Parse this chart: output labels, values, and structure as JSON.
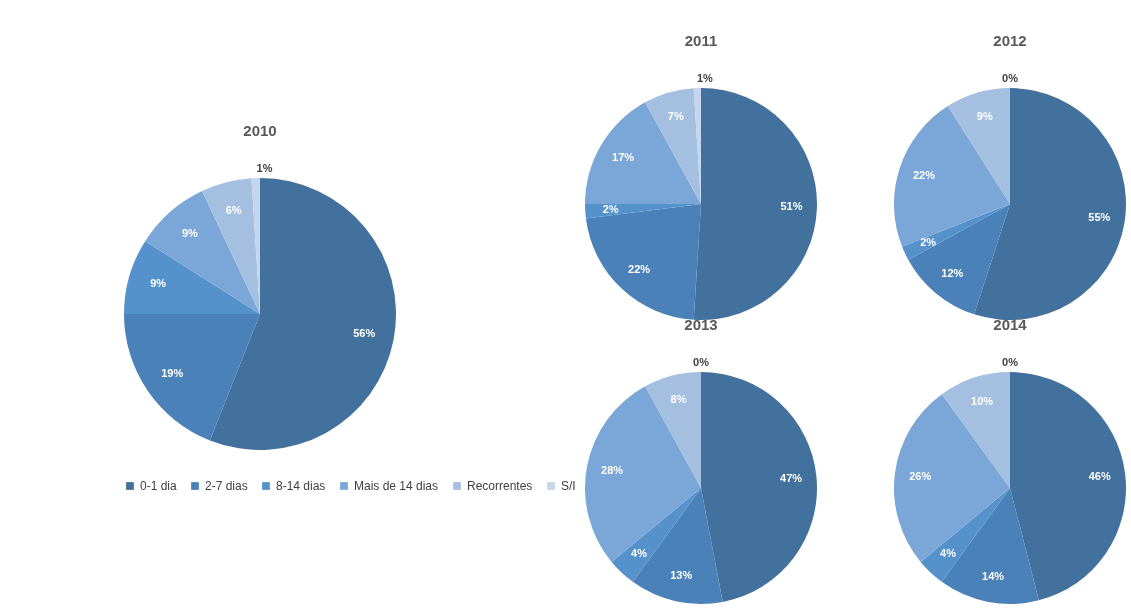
{
  "chart_data": [
    {
      "type": "pie",
      "title": "2010",
      "categories": [
        "0-1 dia",
        "2-7 dias",
        "8-14 dias",
        "Mais de 14 dias",
        "Recorrentes",
        "S/I"
      ],
      "values": [
        56,
        19,
        9,
        9,
        6,
        1
      ],
      "colors": [
        "#41719c",
        "#4a81b8",
        "#5592cc",
        "#7aa6d8",
        "#a4bfe0",
        "#c5d5ec"
      ],
      "value_labels": [
        "56%",
        "19%",
        "9%",
        "9%",
        "6%",
        "1%"
      ],
      "legend": "bottom"
    },
    {
      "type": "pie",
      "title": "2011",
      "categories": [
        null,
        null,
        null,
        null,
        null,
        null
      ],
      "values": [
        51,
        22,
        2,
        17,
        7,
        1
      ],
      "colors": [
        "#41719c",
        "#4a81b8",
        "#5592cc",
        "#7aa6d8",
        "#a4bfe0",
        "#c5d5ec"
      ],
      "value_labels": [
        "51%",
        "22%",
        "2%",
        "17%",
        "7%",
        "1%"
      ]
    },
    {
      "type": "pie",
      "title": "2012",
      "categories": [
        null,
        null,
        null,
        null,
        null,
        null
      ],
      "values": [
        55,
        12,
        2,
        22,
        9,
        0
      ],
      "colors": [
        "#41719c",
        "#4a81b8",
        "#5592cc",
        "#7aa6d8",
        "#a4bfe0",
        "#c5d5ec"
      ],
      "value_labels": [
        "55%",
        "12%",
        "2%",
        "22%",
        "9%",
        "0%"
      ]
    },
    {
      "type": "pie",
      "title": "2013",
      "categories": [
        null,
        null,
        null,
        null,
        null,
        null
      ],
      "values": [
        47,
        13,
        4,
        28,
        8,
        0
      ],
      "colors": [
        "#41719c",
        "#4a81b8",
        "#5592cc",
        "#7aa6d8",
        "#a4bfe0",
        "#c5d5ec"
      ],
      "value_labels": [
        "47%",
        "13%",
        "4%",
        "28%",
        "8%",
        "0%"
      ]
    },
    {
      "type": "pie",
      "title": "2014",
      "categories": [
        null,
        null,
        null,
        null,
        null,
        null
      ],
      "values": [
        46,
        14,
        4,
        26,
        10,
        0
      ],
      "colors": [
        "#41719c",
        "#4a81b8",
        "#5592cc",
        "#7aa6d8",
        "#a4bfe0",
        "#c5d5ec"
      ],
      "value_labels": [
        "46%",
        "14%",
        "4%",
        "26%",
        "10%",
        "0%"
      ]
    }
  ]
}
